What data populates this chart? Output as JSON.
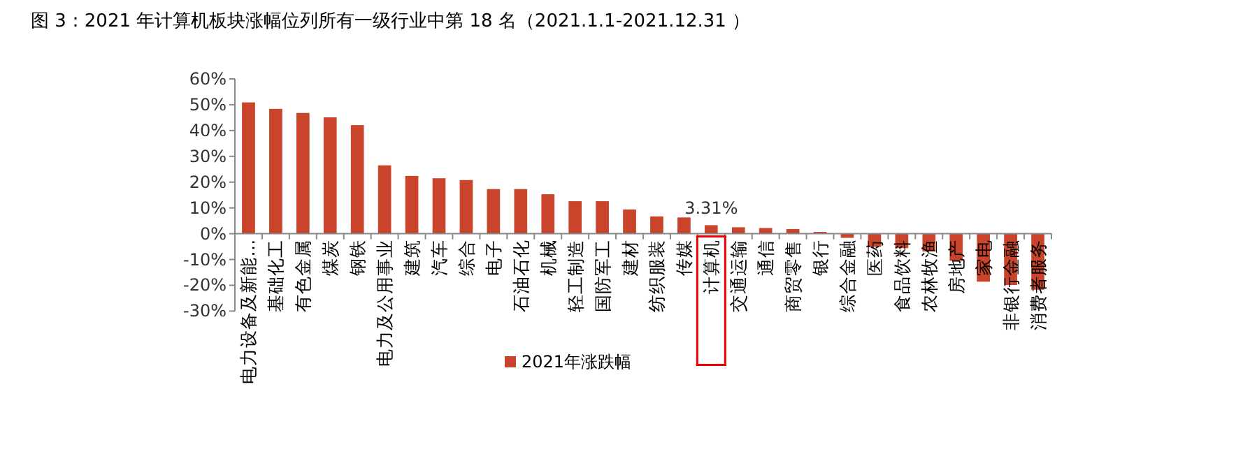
{
  "chart_data": {
    "type": "bar",
    "title": "图 3：2021 年计算机板块涨幅位列所有一级行业中第 18 名（2021.1.1-2021.12.31 ）",
    "categories": [
      "电力设备及新能…",
      "基础化工",
      "有色金属",
      "煤炭",
      "钢铁",
      "电力及公用事业",
      "建筑",
      "汽车",
      "综合",
      "电子",
      "石油石化",
      "机械",
      "轻工制造",
      "国防军工",
      "建材",
      "纺织服装",
      "传媒",
      "计算机",
      "交通运输",
      "通信",
      "商贸零售",
      "银行",
      "综合金融",
      "医药",
      "食品饮料",
      "农林牧渔",
      "房地产",
      "家电",
      "非银行金融",
      "消费者服务"
    ],
    "series": [
      {
        "name": "2021年涨跌幅",
        "color": "#c9442a",
        "values": [
          50.9,
          48.4,
          46.8,
          45.1,
          42.1,
          26.5,
          22.4,
          21.5,
          20.8,
          17.3,
          17.3,
          15.3,
          12.6,
          12.6,
          9.4,
          6.7,
          6.3,
          3.31,
          2.5,
          2.2,
          1.8,
          0.7,
          -1.6,
          -5.1,
          -5.6,
          -6.9,
          -10.5,
          -18.6,
          -19.9,
          -21.7
        ],
        "value_labels": [
          null,
          null,
          null,
          null,
          null,
          null,
          null,
          null,
          null,
          null,
          null,
          null,
          null,
          null,
          null,
          null,
          null,
          "3.31%",
          null,
          null,
          null,
          null,
          null,
          null,
          null,
          null,
          null,
          null,
          null,
          null
        ]
      }
    ],
    "ylim": [
      -30,
      60
    ],
    "yticks": [
      {
        "value": -30,
        "label": "-30%"
      },
      {
        "value": -20,
        "label": "-20%"
      },
      {
        "value": -10,
        "label": "-10%"
      },
      {
        "value": 0,
        "label": "0%"
      },
      {
        "value": 10,
        "label": "10%"
      },
      {
        "value": 20,
        "label": "20%"
      },
      {
        "value": 30,
        "label": "30%"
      },
      {
        "value": 40,
        "label": "40%"
      },
      {
        "value": 50,
        "label": "50%"
      },
      {
        "value": 60,
        "label": "60%"
      }
    ],
    "legend": "bottom"
  }
}
